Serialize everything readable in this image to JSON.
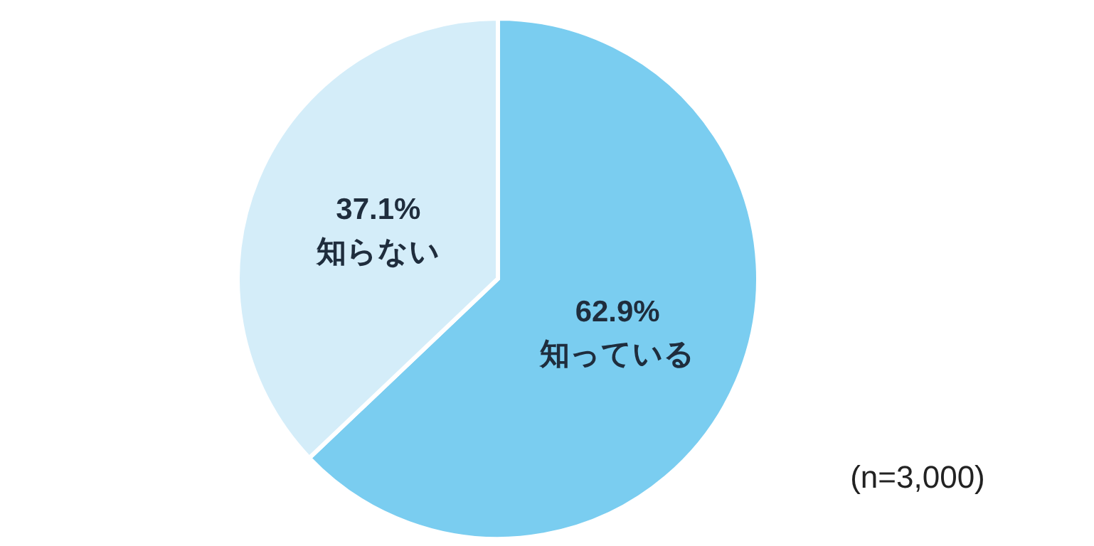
{
  "chart_data": {
    "type": "pie",
    "categories": [
      "知っている",
      "知らない"
    ],
    "values": [
      62.9,
      37.1
    ],
    "colors": [
      "#7acdf0",
      "#d4edf9"
    ],
    "value_labels": [
      "62.9%",
      "37.1%"
    ],
    "annotations": [
      "(n=3,000)"
    ]
  }
}
